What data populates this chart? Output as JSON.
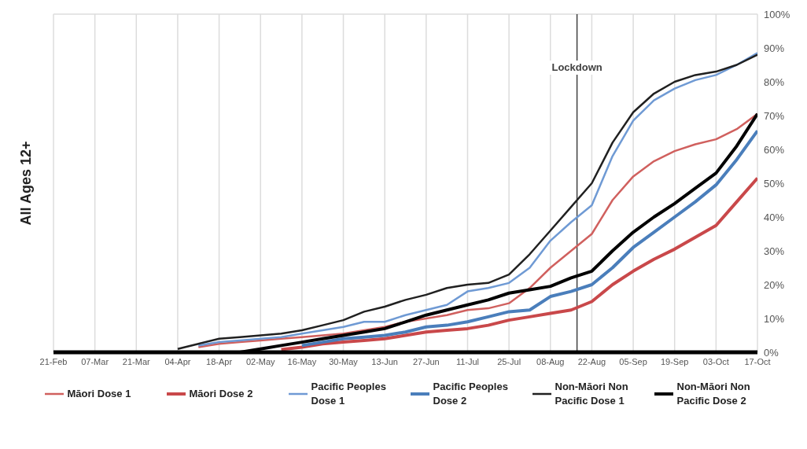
{
  "chart_data": {
    "type": "line",
    "ylabel": "All Ages 12+",
    "x": [
      "--02-21",
      "--02-28",
      "--03-07",
      "--03-14",
      "--03-21",
      "--03-28",
      "--04-04",
      "--04-11",
      "--04-18",
      "--04-25",
      "--05-02",
      "--05-09",
      "--05-16",
      "--05-23",
      "--05-30",
      "--06-06",
      "--06-13",
      "--06-20",
      "--06-27",
      "--07-04",
      "--07-11",
      "--07-18",
      "--07-25",
      "--08-01",
      "--08-08",
      "--08-15",
      "--08-22",
      "--08-29",
      "--09-05",
      "--09-12",
      "--09-19",
      "--09-26",
      "--10-03",
      "--10-10",
      "--10-17"
    ],
    "xlim": [
      "--02-21",
      "--10-17"
    ],
    "xticks": [
      {
        "value": "--02-21",
        "label": "21-Feb"
      },
      {
        "value": "--03-07",
        "label": "07-Mar"
      },
      {
        "value": "--03-21",
        "label": "21-Mar"
      },
      {
        "value": "--04-04",
        "label": "04-Apr"
      },
      {
        "value": "--04-18",
        "label": "18-Apr"
      },
      {
        "value": "--05-02",
        "label": "02-May"
      },
      {
        "value": "--05-16",
        "label": "16-May"
      },
      {
        "value": "--05-30",
        "label": "30-May"
      },
      {
        "value": "--06-13",
        "label": "13-Jun"
      },
      {
        "value": "--06-27",
        "label": "27-Jun"
      },
      {
        "value": "--07-11",
        "label": "11-Jul"
      },
      {
        "value": "--07-25",
        "label": "25-Jul"
      },
      {
        "value": "--08-08",
        "label": "08-Aug"
      },
      {
        "value": "--08-22",
        "label": "22-Aug"
      },
      {
        "value": "--09-05",
        "label": "05-Sep"
      },
      {
        "value": "--09-19",
        "label": "19-Sep"
      },
      {
        "value": "--10-03",
        "label": "03-Oct"
      },
      {
        "value": "--10-17",
        "label": "17-Oct"
      }
    ],
    "ylim": [
      0,
      100
    ],
    "yticks": [
      {
        "value": 0,
        "label": "0%"
      },
      {
        "value": 10,
        "label": "10%"
      },
      {
        "value": 20,
        "label": "20%"
      },
      {
        "value": 30,
        "label": "30%"
      },
      {
        "value": 40,
        "label": "40%"
      },
      {
        "value": 50,
        "label": "50%"
      },
      {
        "value": 60,
        "label": "60%"
      },
      {
        "value": 70,
        "label": "70%"
      },
      {
        "value": 80,
        "label": "80%"
      },
      {
        "value": 90,
        "label": "90%"
      },
      {
        "value": 100,
        "label": "100%"
      }
    ],
    "grid": true,
    "legend": "bottom",
    "marker": "none",
    "line_style": "solid",
    "ref_lines": [
      {
        "axis": "x",
        "value": "--08-17",
        "label": "Lockdown",
        "color": "#404040"
      }
    ],
    "series": [
      {
        "name": "Māori Dose 1",
        "color": "#d0605e",
        "values": [
          null,
          null,
          null,
          null,
          null,
          null,
          null,
          1.5,
          2.5,
          3,
          3.5,
          4,
          4.5,
          5,
          5.5,
          6.5,
          7.5,
          9,
          10,
          11,
          12.5,
          13,
          14.5,
          19,
          25,
          30,
          35,
          45,
          52,
          56.5,
          59.5,
          61.5,
          63,
          66,
          70.5
        ]
      },
      {
        "name": "Māori Dose 2",
        "color": "#c9484a",
        "values": [
          null,
          null,
          null,
          null,
          null,
          null,
          null,
          null,
          null,
          null,
          null,
          0.8,
          1.5,
          2.5,
          3,
          3.5,
          4,
          5,
          6,
          6.5,
          7,
          8,
          9.5,
          10.5,
          11.5,
          12.5,
          15,
          20,
          24,
          27.5,
          30.5,
          34,
          37.5,
          44.5,
          51.5
        ]
      },
      {
        "name": "Pacific Peoples Dose 1",
        "color": "#6f9ad4",
        "values": [
          null,
          null,
          null,
          null,
          null,
          null,
          null,
          2,
          3,
          3.5,
          4,
          4.5,
          5.5,
          6.5,
          7.5,
          9,
          9,
          11,
          12.5,
          14,
          18,
          19,
          20.5,
          25,
          33,
          38.5,
          43.5,
          58,
          68.5,
          74.5,
          78,
          80.5,
          82,
          85,
          88.5
        ]
      },
      {
        "name": "Pacific Peoples Dose 2",
        "color": "#4a7ebb",
        "values": [
          null,
          null,
          null,
          null,
          null,
          null,
          null,
          null,
          null,
          null,
          null,
          null,
          2,
          3,
          4,
          4.5,
          5,
          6,
          7.5,
          8,
          9,
          10.5,
          12,
          12.5,
          16.5,
          18,
          20,
          25,
          31,
          35.5,
          40,
          44.5,
          49.5,
          57,
          65.5
        ]
      },
      {
        "name": "Non-Māori Non Pacific Dose 1",
        "color": "#202020",
        "values": [
          null,
          null,
          null,
          null,
          null,
          null,
          1,
          2.5,
          4,
          4.5,
          5,
          5.5,
          6.5,
          8,
          9.5,
          12,
          13.5,
          15.5,
          17,
          19,
          20,
          20.5,
          23,
          29,
          36,
          43,
          50,
          62,
          71,
          76.5,
          80,
          82,
          83,
          85,
          88
        ]
      },
      {
        "name": "Non-Māori Non Pacific Dose 2",
        "color": "#000000",
        "values": [
          0,
          0,
          0,
          0,
          0,
          0,
          0,
          0,
          0,
          0,
          1,
          2,
          3,
          4,
          5,
          6,
          7,
          9,
          11,
          12.5,
          14,
          15.5,
          17.5,
          18.5,
          19.5,
          22,
          24,
          30,
          35.5,
          40,
          44,
          48.5,
          53,
          61,
          70.5
        ]
      }
    ]
  }
}
